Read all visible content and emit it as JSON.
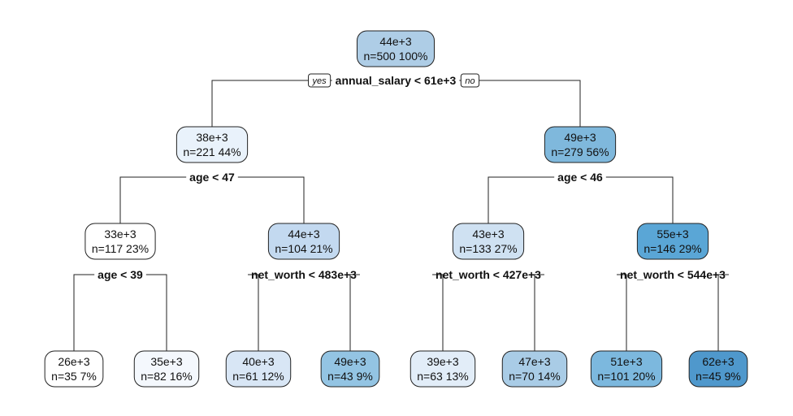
{
  "tree": {
    "branch_labels": {
      "yes": "yes",
      "no": "no"
    },
    "nodes": [
      {
        "id": "n1",
        "value": "44e+3",
        "stats": "n=500  100%",
        "color": "#aecde6"
      },
      {
        "id": "n2",
        "value": "38e+3",
        "stats": "n=221  44%",
        "color": "#e9f2fb"
      },
      {
        "id": "n3",
        "value": "49e+3",
        "stats": "n=279  56%",
        "color": "#7fb8dc"
      },
      {
        "id": "n4",
        "value": "33e+3",
        "stats": "n=117  23%",
        "color": "#ffffff"
      },
      {
        "id": "n5",
        "value": "44e+3",
        "stats": "n=104  21%",
        "color": "#c3d9f0"
      },
      {
        "id": "n6",
        "value": "43e+3",
        "stats": "n=133  27%",
        "color": "#cfe1f2"
      },
      {
        "id": "n7",
        "value": "55e+3",
        "stats": "n=146  29%",
        "color": "#5aa6d6"
      },
      {
        "id": "n8",
        "value": "26e+3",
        "stats": "n=35  7%",
        "color": "#ffffff"
      },
      {
        "id": "n9",
        "value": "35e+3",
        "stats": "n=82  16%",
        "color": "#f4f8fd"
      },
      {
        "id": "n10",
        "value": "40e+3",
        "stats": "n=61  12%",
        "color": "#d8e6f5"
      },
      {
        "id": "n11",
        "value": "49e+3",
        "stats": "n=43  9%",
        "color": "#93c4e3"
      },
      {
        "id": "n12",
        "value": "39e+3",
        "stats": "n=63  13%",
        "color": "#e2edf8"
      },
      {
        "id": "n13",
        "value": "47e+3",
        "stats": "n=70  14%",
        "color": "#a9cce6"
      },
      {
        "id": "n14",
        "value": "51e+3",
        "stats": "n=101  20%",
        "color": "#7cb8de"
      },
      {
        "id": "n15",
        "value": "62e+3",
        "stats": "n=45  9%",
        "color": "#4f98cc"
      }
    ],
    "splits": [
      {
        "node": "n1",
        "label": "annual_salary < 61e+3",
        "left": "n2",
        "right": "n3"
      },
      {
        "node": "n2",
        "label": "age < 47",
        "left": "n4",
        "right": "n5"
      },
      {
        "node": "n3",
        "label": "age < 46",
        "left": "n6",
        "right": "n7"
      },
      {
        "node": "n4",
        "label": "age < 39",
        "left": "n8",
        "right": "n9"
      },
      {
        "node": "n5",
        "label": "net_worth < 483e+3",
        "left": "n10",
        "right": "n11"
      },
      {
        "node": "n6",
        "label": "net_worth < 427e+3",
        "left": "n12",
        "right": "n13"
      },
      {
        "node": "n7",
        "label": "net_worth < 544e+3",
        "left": "n14",
        "right": "n15"
      }
    ]
  }
}
